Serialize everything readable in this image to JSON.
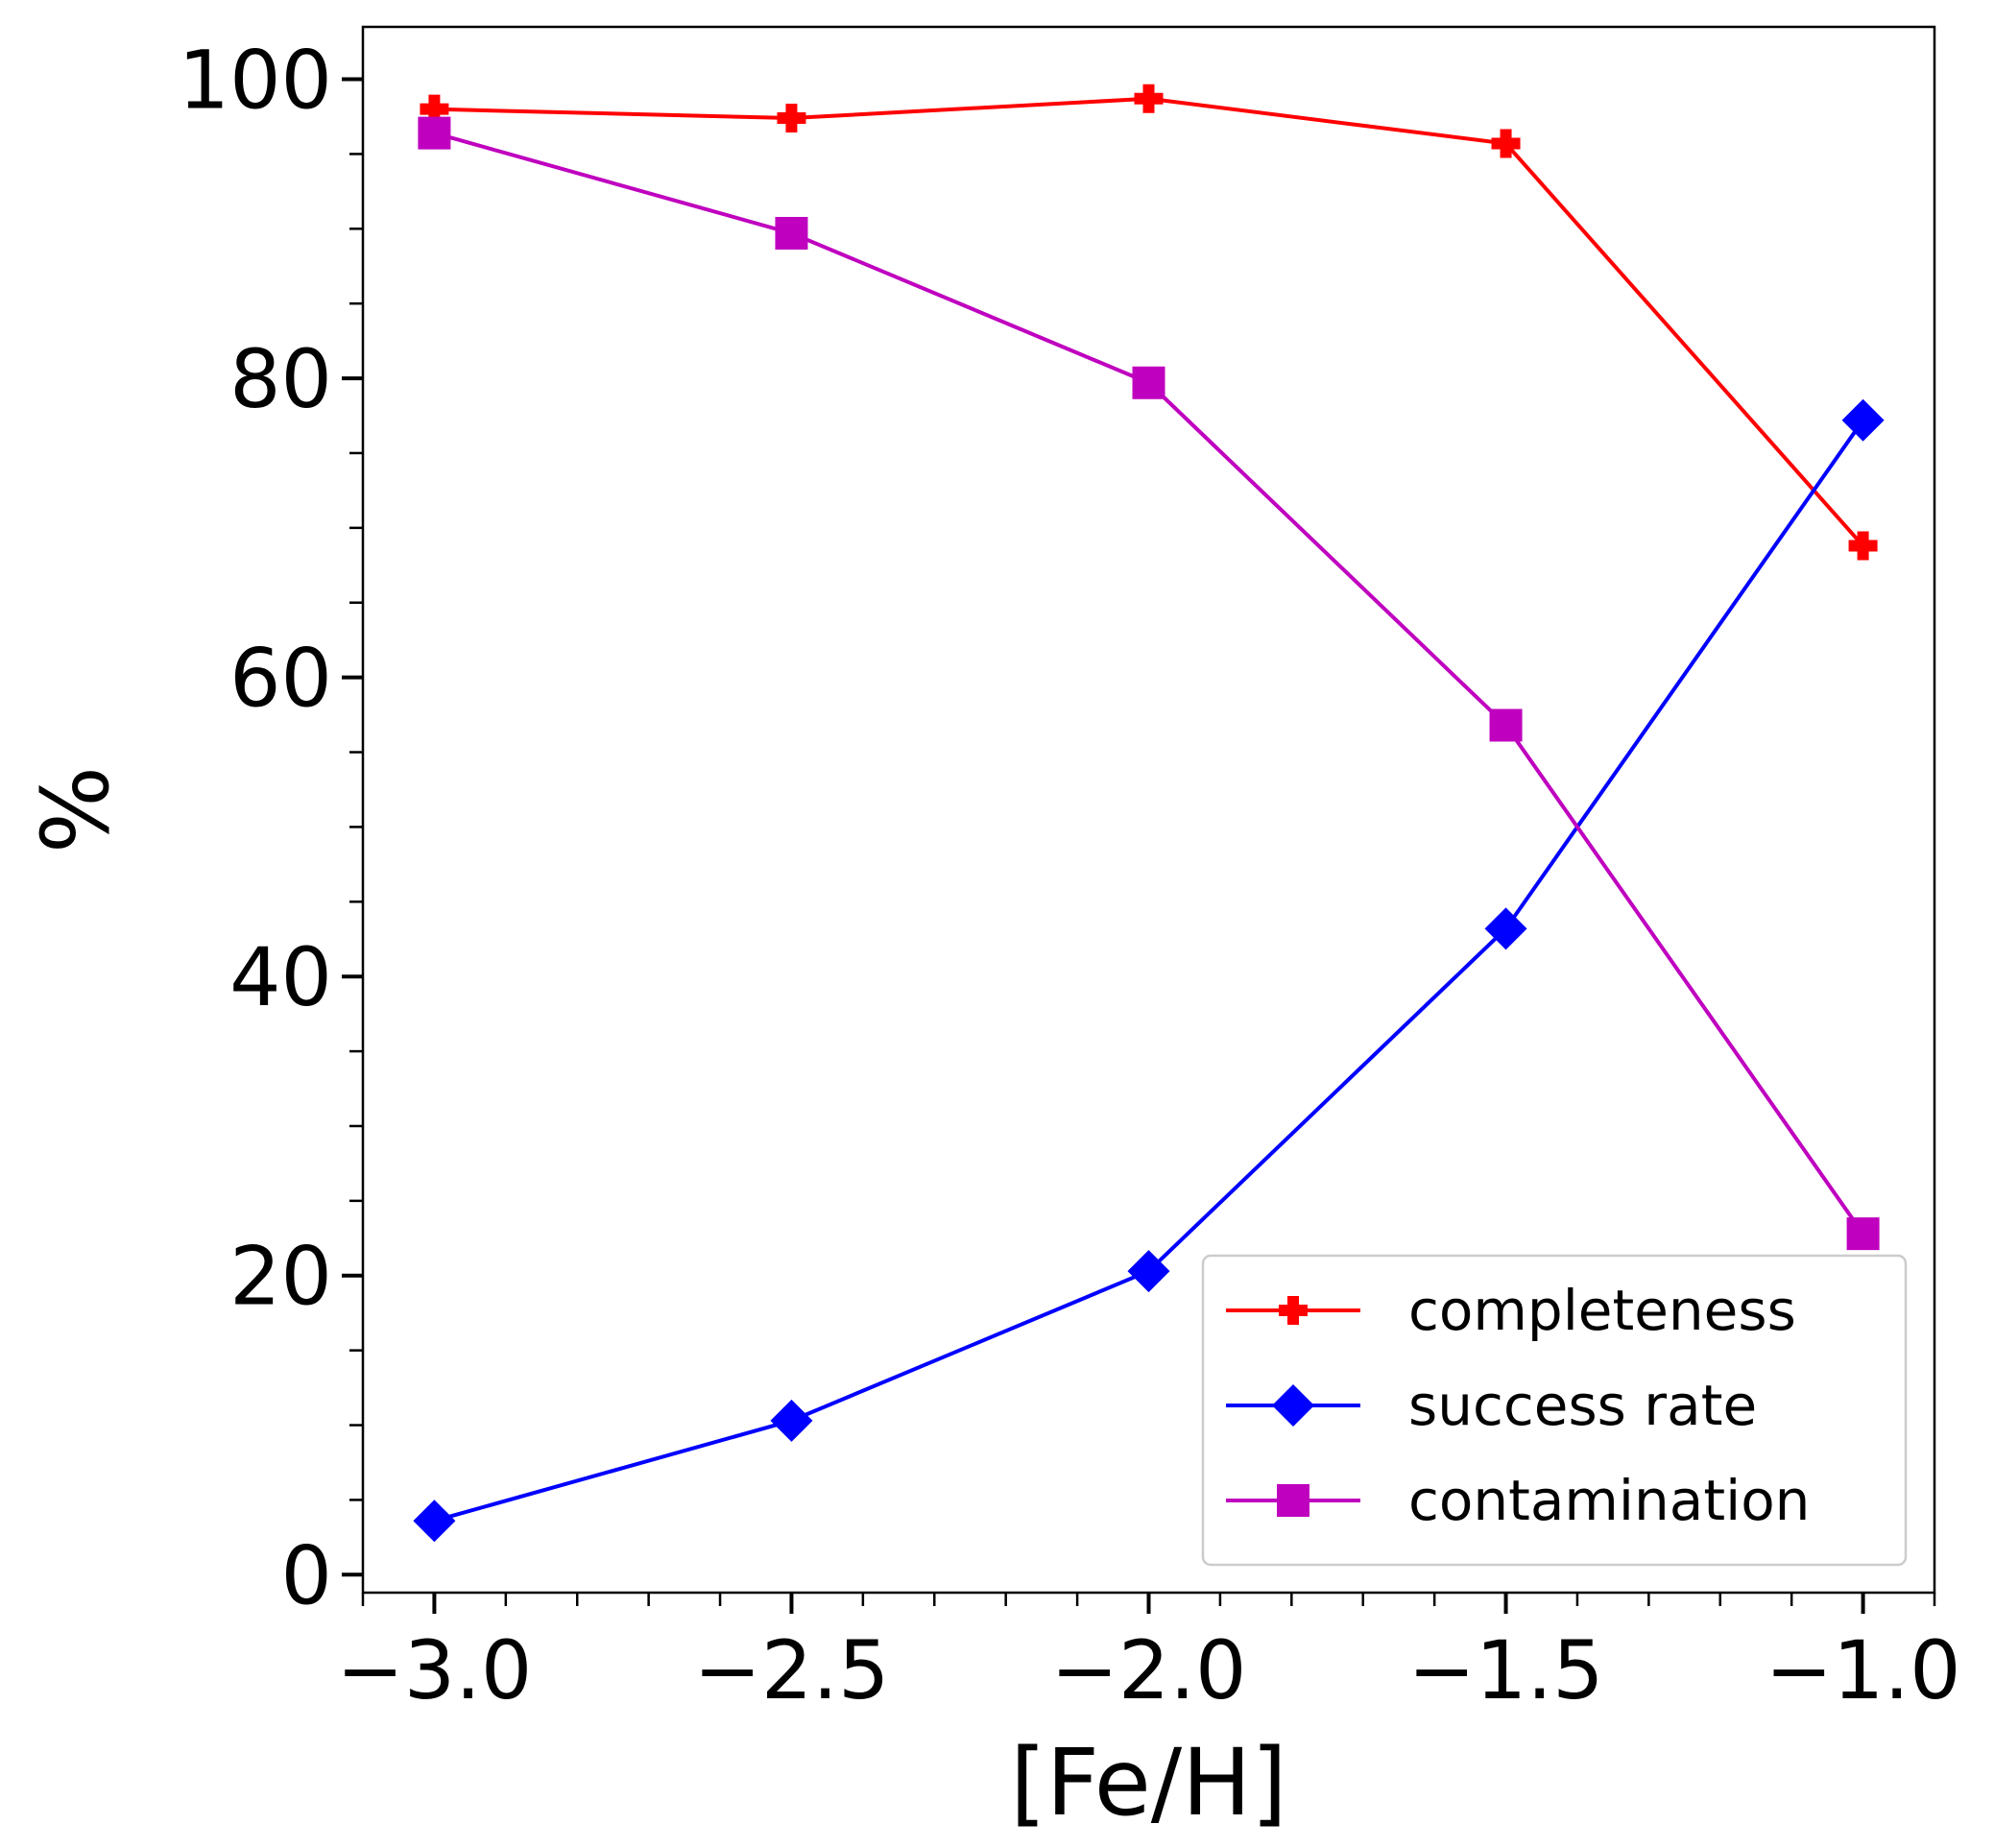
{
  "chart_data": {
    "type": "line",
    "xlabel": "[Fe/H]",
    "ylabel": "%",
    "xlim": [
      -3.1,
      -0.9
    ],
    "ylim": [
      -1.2,
      103.5
    ],
    "x_ticks": [
      -3.0,
      -2.5,
      -2.0,
      -1.5,
      -1.0
    ],
    "x_tick_labels": [
      "−3.0",
      "−2.5",
      "−2.0",
      "−1.5",
      "−1.0"
    ],
    "x_minor_step": 0.1,
    "y_ticks": [
      0,
      20,
      40,
      60,
      80,
      100
    ],
    "y_tick_labels": [
      "0",
      "20",
      "40",
      "60",
      "80",
      "100"
    ],
    "y_minor_step": 5,
    "grid": false,
    "legend_position": "lower-right",
    "x": [
      -3.0,
      -2.5,
      -2.0,
      -1.5,
      -1.0
    ],
    "series": [
      {
        "name": "completeness",
        "color": "#ff0000",
        "marker": "plus-filled",
        "values": [
          98.0,
          97.4,
          98.7,
          95.7,
          68.8
        ]
      },
      {
        "name": "success rate",
        "color": "#0000ff",
        "marker": "diamond",
        "values": [
          3.6,
          10.3,
          20.3,
          43.2,
          77.2
        ]
      },
      {
        "name": "contamination",
        "color": "#bf00bf",
        "marker": "square",
        "values": [
          96.4,
          89.7,
          79.7,
          56.8,
          22.8
        ]
      }
    ]
  }
}
